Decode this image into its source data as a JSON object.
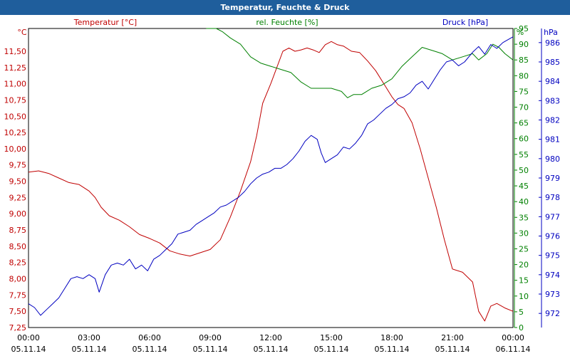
{
  "chart_data": {
    "type": "line",
    "title": "Temperatur, Feuchte & Druck",
    "x_ticks": [
      "00:00",
      "03:00",
      "06:00",
      "09:00",
      "12:00",
      "15:00",
      "18:00",
      "21:00",
      "00:00"
    ],
    "x_dates": [
      "05.11.14",
      "05.11.14",
      "05.11.14",
      "05.11.14",
      "05.11.14",
      "05.11.14",
      "05.11.14",
      "05.11.14",
      "06.11.14"
    ],
    "xlim": [
      0,
      24
    ],
    "axes": {
      "temperature": {
        "label": "Temperatur [°C]",
        "unit": "°C",
        "range": [
          7.25,
          11.85
        ],
        "ticks": [
          "11,50",
          "11,25",
          "11,00",
          "10,75",
          "10,50",
          "10,25",
          "10,00",
          "9,75",
          "9,50",
          "9,25",
          "9,00",
          "8,75",
          "8,50",
          "8,25",
          "8,00",
          "7,75",
          "7,50",
          "7,25"
        ],
        "color": "#c00000"
      },
      "humidity": {
        "label": "rel. Feuchte [%]",
        "unit": "%",
        "range": [
          0,
          95
        ],
        "ticks": [
          "95",
          "90",
          "85",
          "80",
          "75",
          "70",
          "65",
          "60",
          "55",
          "50",
          "45",
          "40",
          "35",
          "30",
          "25",
          "20",
          "15",
          "10",
          "5",
          "0"
        ],
        "color": "#008000"
      },
      "pressure": {
        "label": "Druck [hPa]",
        "unit": "hPa",
        "range": [
          971.27,
          986.73
        ],
        "ticks": [
          "986",
          "985",
          "984",
          "983",
          "982",
          "981",
          "980",
          "979",
          "978",
          "977",
          "976",
          "975",
          "974",
          "973",
          "972"
        ],
        "color": "#0000c0"
      }
    },
    "series": [
      {
        "name": "Temperatur",
        "axis": "temperature",
        "color": "#c00000",
        "points": [
          [
            0,
            9.64
          ],
          [
            0.5,
            9.66
          ],
          [
            1,
            9.62
          ],
          [
            1.5,
            9.55
          ],
          [
            2,
            9.48
          ],
          [
            2.5,
            9.45
          ],
          [
            3,
            9.35
          ],
          [
            3.3,
            9.25
          ],
          [
            3.6,
            9.1
          ],
          [
            4,
            8.97
          ],
          [
            4.5,
            8.9
          ],
          [
            5,
            8.8
          ],
          [
            5.5,
            8.68
          ],
          [
            6,
            8.62
          ],
          [
            6.5,
            8.55
          ],
          [
            7,
            8.43
          ],
          [
            7.5,
            8.38
          ],
          [
            8,
            8.35
          ],
          [
            8.5,
            8.4
          ],
          [
            9,
            8.45
          ],
          [
            9.5,
            8.6
          ],
          [
            10,
            8.95
          ],
          [
            10.5,
            9.35
          ],
          [
            11,
            9.8
          ],
          [
            11.3,
            10.2
          ],
          [
            11.6,
            10.7
          ],
          [
            12,
            11.0
          ],
          [
            12.3,
            11.25
          ],
          [
            12.6,
            11.5
          ],
          [
            12.9,
            11.55
          ],
          [
            13.2,
            11.5
          ],
          [
            13.5,
            11.52
          ],
          [
            13.8,
            11.55
          ],
          [
            14.1,
            11.52
          ],
          [
            14.4,
            11.48
          ],
          [
            14.7,
            11.6
          ],
          [
            15,
            11.65
          ],
          [
            15.3,
            11.6
          ],
          [
            15.6,
            11.58
          ],
          [
            16,
            11.5
          ],
          [
            16.4,
            11.48
          ],
          [
            16.8,
            11.35
          ],
          [
            17.2,
            11.2
          ],
          [
            17.6,
            11.0
          ],
          [
            18,
            10.8
          ],
          [
            18.3,
            10.68
          ],
          [
            18.6,
            10.62
          ],
          [
            19,
            10.4
          ],
          [
            19.4,
            10.0
          ],
          [
            19.8,
            9.55
          ],
          [
            20.2,
            9.1
          ],
          [
            20.6,
            8.6
          ],
          [
            21,
            8.15
          ],
          [
            21.5,
            8.1
          ],
          [
            22,
            7.95
          ],
          [
            22.3,
            7.5
          ],
          [
            22.6,
            7.35
          ],
          [
            22.9,
            7.58
          ],
          [
            23.2,
            7.62
          ],
          [
            23.6,
            7.55
          ],
          [
            24,
            7.5
          ]
        ]
      },
      {
        "name": "rel. Feuchte",
        "axis": "humidity",
        "color": "#008000",
        "points": [
          [
            8.8,
            95
          ],
          [
            9.3,
            95
          ],
          [
            9.6,
            94
          ],
          [
            10,
            92
          ],
          [
            10.5,
            90
          ],
          [
            11,
            86
          ],
          [
            11.5,
            84
          ],
          [
            12,
            83
          ],
          [
            12.5,
            82
          ],
          [
            13,
            81
          ],
          [
            13.5,
            78
          ],
          [
            14,
            76
          ],
          [
            14.5,
            76
          ],
          [
            15,
            76
          ],
          [
            15.5,
            75
          ],
          [
            15.8,
            73
          ],
          [
            16.1,
            74
          ],
          [
            16.5,
            74
          ],
          [
            17,
            76
          ],
          [
            17.5,
            77
          ],
          [
            18,
            79
          ],
          [
            18.5,
            83
          ],
          [
            19,
            86
          ],
          [
            19.5,
            89
          ],
          [
            20,
            88
          ],
          [
            20.5,
            87
          ],
          [
            21,
            85
          ],
          [
            21.5,
            86
          ],
          [
            22,
            87
          ],
          [
            22.3,
            85
          ],
          [
            22.7,
            87
          ],
          [
            23,
            90
          ],
          [
            23.3,
            89
          ],
          [
            23.6,
            87
          ],
          [
            24,
            85
          ]
        ]
      },
      {
        "name": "Druck",
        "axis": "pressure",
        "color": "#0000c0",
        "points": [
          [
            0,
            972.5
          ],
          [
            0.3,
            972.3
          ],
          [
            0.6,
            971.9
          ],
          [
            0.9,
            972.2
          ],
          [
            1.2,
            972.5
          ],
          [
            1.5,
            972.8
          ],
          [
            1.8,
            973.3
          ],
          [
            2.1,
            973.8
          ],
          [
            2.4,
            973.9
          ],
          [
            2.7,
            973.8
          ],
          [
            3,
            974.0
          ],
          [
            3.3,
            973.8
          ],
          [
            3.5,
            973.1
          ],
          [
            3.8,
            974.0
          ],
          [
            4.1,
            974.5
          ],
          [
            4.4,
            974.6
          ],
          [
            4.7,
            974.5
          ],
          [
            5,
            974.8
          ],
          [
            5.3,
            974.3
          ],
          [
            5.6,
            974.5
          ],
          [
            5.9,
            974.2
          ],
          [
            6.2,
            974.8
          ],
          [
            6.5,
            975.0
          ],
          [
            6.8,
            975.3
          ],
          [
            7.1,
            975.6
          ],
          [
            7.4,
            976.1
          ],
          [
            7.7,
            976.2
          ],
          [
            8,
            976.3
          ],
          [
            8.3,
            976.6
          ],
          [
            8.6,
            976.8
          ],
          [
            8.9,
            977.0
          ],
          [
            9.2,
            977.2
          ],
          [
            9.5,
            977.5
          ],
          [
            9.8,
            977.6
          ],
          [
            10.1,
            977.8
          ],
          [
            10.4,
            978.0
          ],
          [
            10.7,
            978.3
          ],
          [
            11,
            978.7
          ],
          [
            11.3,
            979.0
          ],
          [
            11.6,
            979.2
          ],
          [
            11.9,
            979.3
          ],
          [
            12.2,
            979.5
          ],
          [
            12.5,
            979.5
          ],
          [
            12.8,
            979.7
          ],
          [
            13.1,
            980.0
          ],
          [
            13.4,
            980.4
          ],
          [
            13.7,
            980.9
          ],
          [
            14,
            981.2
          ],
          [
            14.3,
            981.0
          ],
          [
            14.5,
            980.3
          ],
          [
            14.7,
            979.8
          ],
          [
            15,
            980.0
          ],
          [
            15.3,
            980.2
          ],
          [
            15.6,
            980.6
          ],
          [
            15.9,
            980.5
          ],
          [
            16.2,
            980.8
          ],
          [
            16.5,
            981.2
          ],
          [
            16.8,
            981.8
          ],
          [
            17.1,
            982.0
          ],
          [
            17.4,
            982.3
          ],
          [
            17.7,
            982.6
          ],
          [
            18,
            982.8
          ],
          [
            18.3,
            983.1
          ],
          [
            18.6,
            983.2
          ],
          [
            18.9,
            983.4
          ],
          [
            19.2,
            983.8
          ],
          [
            19.5,
            984.0
          ],
          [
            19.8,
            983.6
          ],
          [
            20.1,
            984.1
          ],
          [
            20.4,
            984.6
          ],
          [
            20.7,
            985.0
          ],
          [
            21,
            985.1
          ],
          [
            21.3,
            984.8
          ],
          [
            21.6,
            985.0
          ],
          [
            22,
            985.5
          ],
          [
            22.3,
            985.8
          ],
          [
            22.6,
            985.4
          ],
          [
            22.9,
            985.9
          ],
          [
            23.2,
            985.7
          ],
          [
            23.5,
            986.0
          ],
          [
            24,
            986.3
          ]
        ]
      }
    ]
  }
}
